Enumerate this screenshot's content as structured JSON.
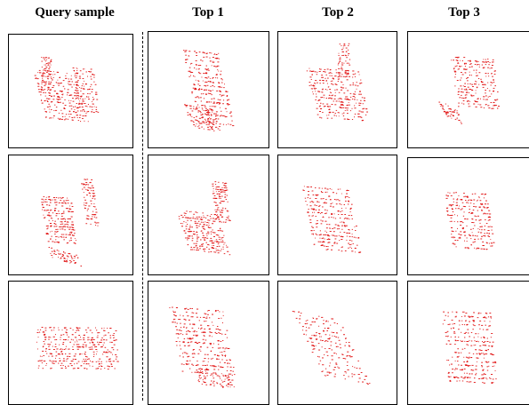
{
  "headers": {
    "query": "Query sample",
    "top1": "Top 1",
    "top2": "Top 2",
    "top3": "Top 3"
  },
  "point_color": "#e01010",
  "panels": [
    {
      "row": 1,
      "column": "query",
      "content": "red point-cloud scan"
    },
    {
      "row": 1,
      "column": "top1",
      "content": "red point-cloud scan"
    },
    {
      "row": 1,
      "column": "top2",
      "content": "red point-cloud scan"
    },
    {
      "row": 1,
      "column": "top3",
      "content": "red point-cloud scan"
    },
    {
      "row": 2,
      "column": "query",
      "content": "red point-cloud scan"
    },
    {
      "row": 2,
      "column": "top1",
      "content": "red point-cloud scan"
    },
    {
      "row": 2,
      "column": "top2",
      "content": "red point-cloud scan"
    },
    {
      "row": 2,
      "column": "top3",
      "content": "red point-cloud scan"
    },
    {
      "row": 3,
      "column": "query",
      "content": "red point-cloud scan"
    },
    {
      "row": 3,
      "column": "top1",
      "content": "red point-cloud scan"
    },
    {
      "row": 3,
      "column": "top2",
      "content": "red point-cloud scan"
    },
    {
      "row": 3,
      "column": "top3",
      "content": "red point-cloud scan"
    }
  ]
}
